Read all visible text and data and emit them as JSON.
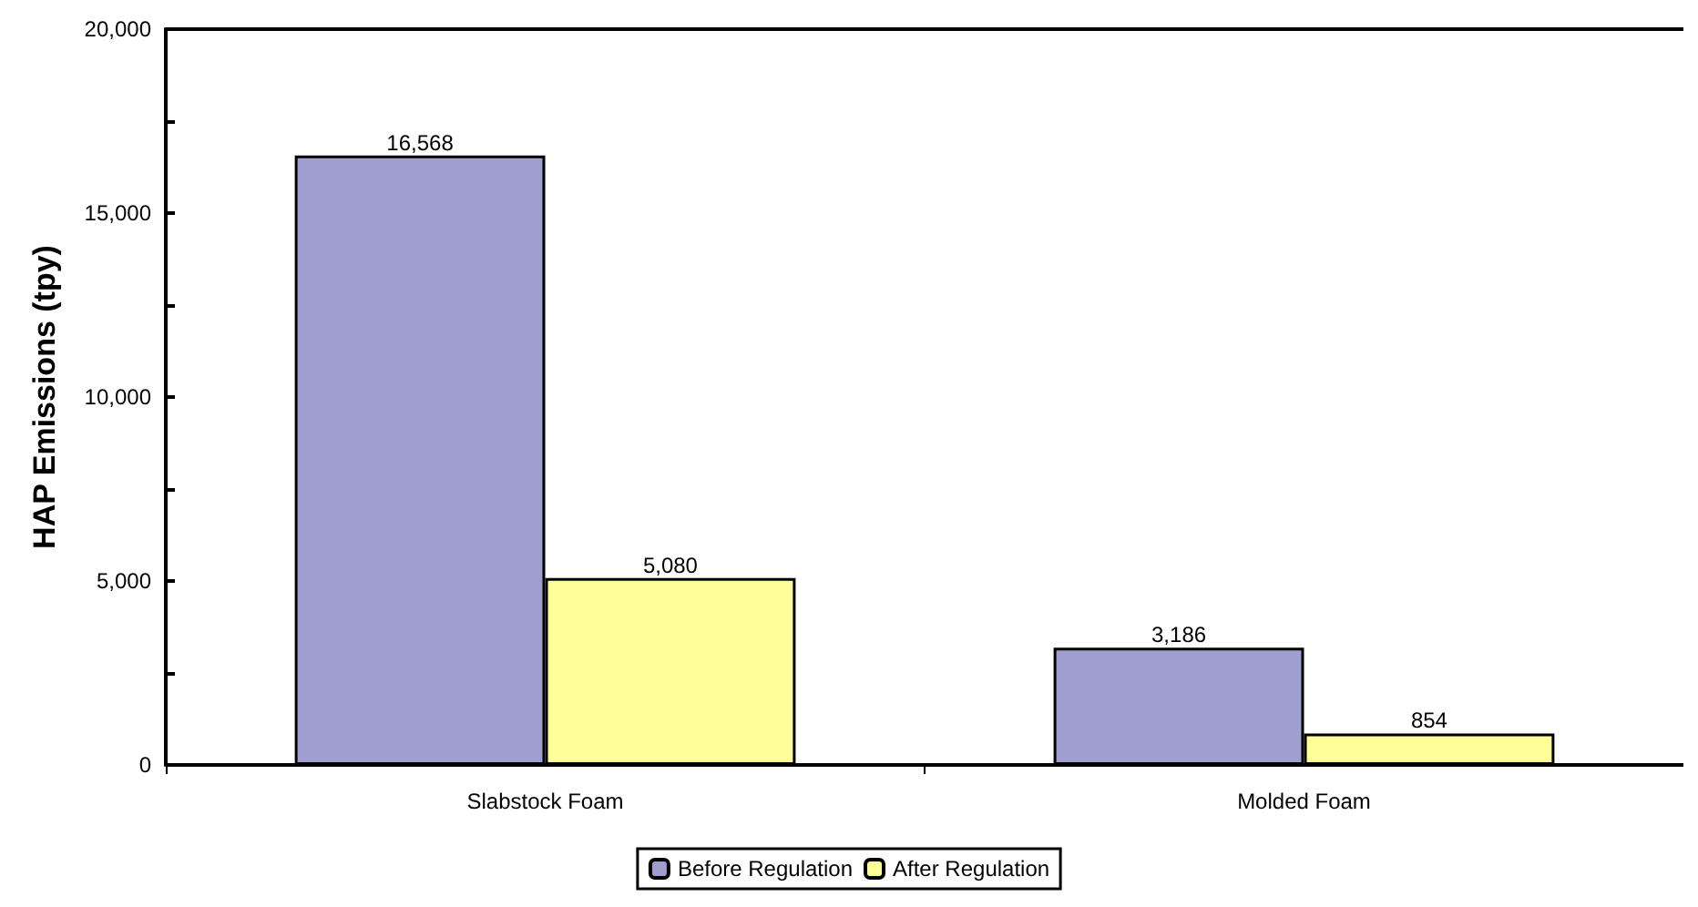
{
  "chart_data": {
    "type": "bar",
    "ylabel": "HAP Emissions (tpy)",
    "categories": [
      "Slabstock Foam",
      "Molded Foam"
    ],
    "series": [
      {
        "name": "Before Regulation",
        "color": "#9f9fcf",
        "values": [
          16568,
          3186
        ],
        "value_labels": [
          "16,568",
          "3,186"
        ]
      },
      {
        "name": "After Regulation",
        "color": "#ffff99",
        "values": [
          5080,
          854
        ],
        "value_labels": [
          "5,080",
          "854"
        ]
      }
    ],
    "ylim": [
      0,
      20000
    ],
    "yticks": [
      0,
      {
        "value": 2500,
        "label": null
      },
      {
        "value": 5000,
        "label": "5,000"
      },
      {
        "value": 7500,
        "label": null
      },
      {
        "value": 10000,
        "label": "10,000"
      },
      {
        "value": 12500,
        "label": null
      },
      {
        "value": 15000,
        "label": "15,000"
      },
      {
        "value": 17500,
        "label": null
      },
      {
        "value": 20000,
        "label": "20,000"
      }
    ],
    "legend": "bottom",
    "grid": false
  }
}
